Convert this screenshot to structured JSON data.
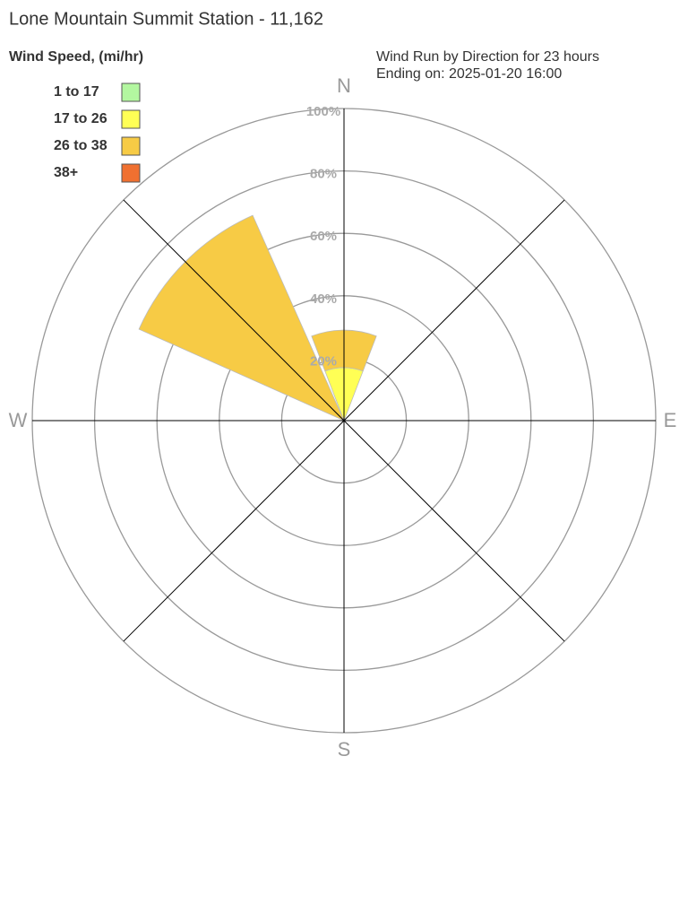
{
  "chart_data": {
    "type": "windrose",
    "title": "Lone Mountain Summit Station - 11,162",
    "legend_title": "Wind Speed, (mi/hr)",
    "subtitle": [
      "Wind Run by Direction for 23 hours",
      "Ending on: 2025-01-20 16:00"
    ],
    "compass": [
      "N",
      "E",
      "S",
      "W"
    ],
    "directions": [
      0,
      45,
      90,
      135,
      180,
      225,
      270,
      315
    ],
    "series": [
      {
        "name": "1 to 17",
        "color": "#b3f7a0",
        "values": [
          0,
          0,
          0,
          0,
          0,
          0,
          0,
          0
        ]
      },
      {
        "name": "17 to 26",
        "color": "#ffff55",
        "values": [
          17,
          0,
          0,
          0,
          0,
          0,
          0,
          0
        ]
      },
      {
        "name": "26 to 38",
        "color": "#f7cb45",
        "values": [
          12,
          0,
          0,
          0,
          0,
          0,
          0,
          72
        ]
      },
      {
        "name": "38+",
        "color": "#f07030",
        "values": [
          0,
          0,
          0,
          0,
          0,
          0,
          0,
          0
        ]
      }
    ],
    "rlim": [
      0,
      100
    ],
    "rticks": [
      {
        "value": 20,
        "label": "20%"
      },
      {
        "value": 40,
        "label": "40%"
      },
      {
        "value": 60,
        "label": "60%"
      },
      {
        "value": 80,
        "label": "80%"
      },
      {
        "value": 100,
        "label": "100%"
      }
    ]
  }
}
